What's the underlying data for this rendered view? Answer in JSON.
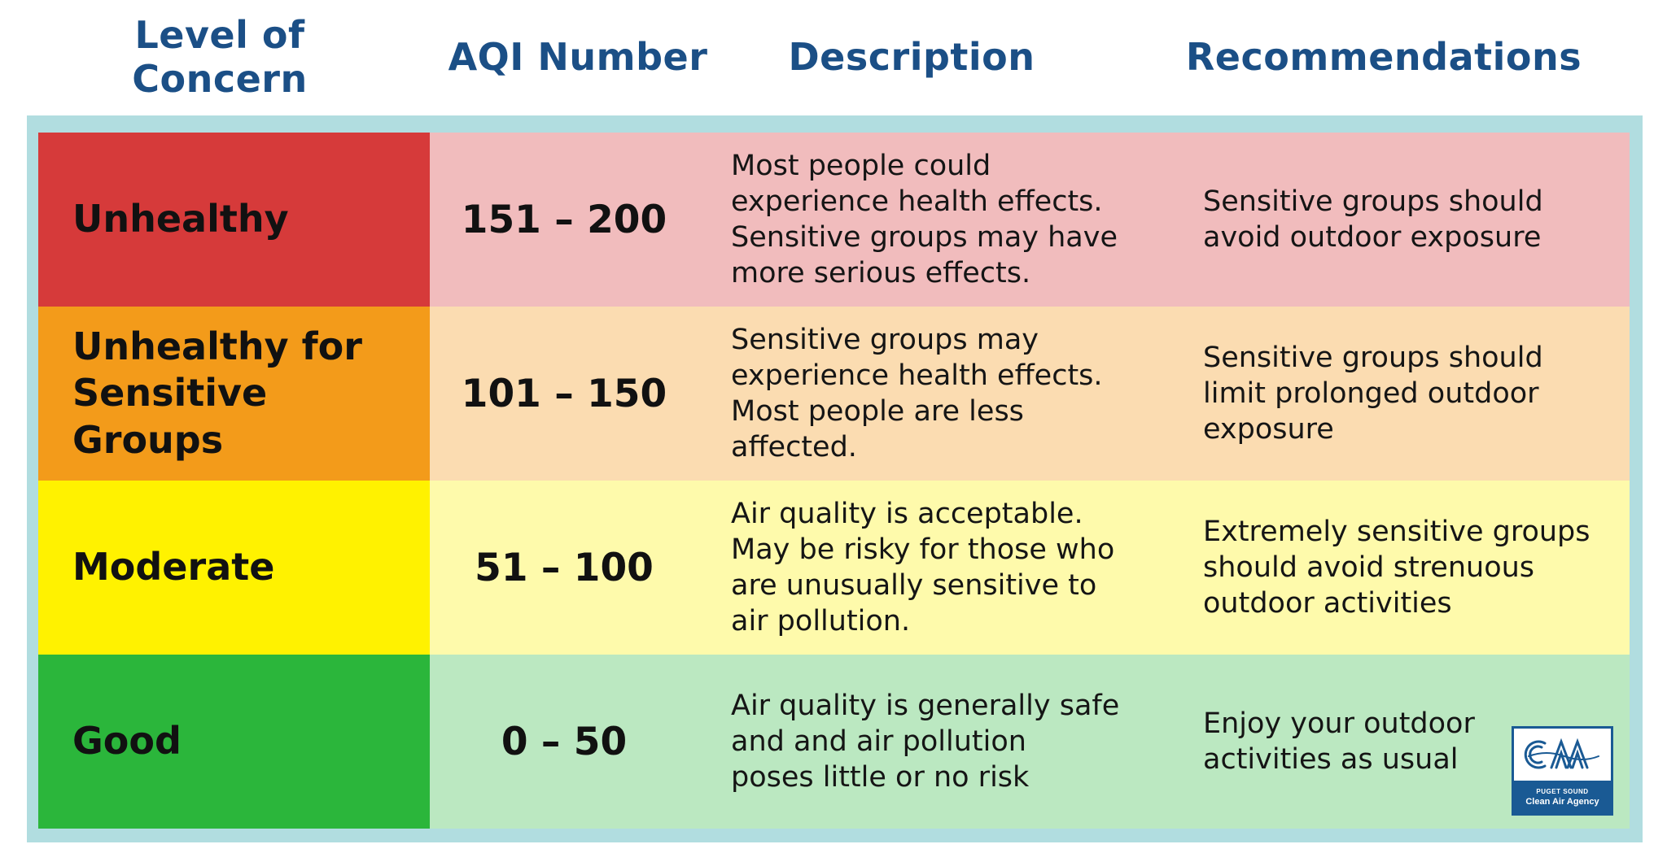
{
  "headers": {
    "level": "Level of\nConcern",
    "aqi": "AQI Number",
    "description": "Description",
    "recommendations": "Recommendations"
  },
  "rows": [
    {
      "level": "Unhealthy",
      "aqi": "151 – 200",
      "description": "Most people could\nexperience health effects.\nSensitive groups may have\nmore serious effects.",
      "recommendation": "Sensitive groups should\navoid outdoor exposure",
      "level_color": "#d63a3a",
      "row_color": "#f1bcbd"
    },
    {
      "level": "Unhealthy for\nSensitive Groups",
      "aqi": "101 – 150",
      "description": "Sensitive groups may\nexperience health effects.\nMost people are less\naffected.",
      "recommendation": "Sensitive groups should\nlimit prolonged outdoor\nexposure",
      "level_color": "#f39b1a",
      "row_color": "#fbdcb1"
    },
    {
      "level": "Moderate",
      "aqi": "51 – 100",
      "description": "Air quality is acceptable.\nMay be risky for those who\nare unusually sensitive to\nair pollution.",
      "recommendation": "Extremely sensitive groups\nshould avoid strenuous\noutdoor activities",
      "level_color": "#fff200",
      "row_color": "#fefaab"
    },
    {
      "level": "Good",
      "aqi": "0 – 50",
      "description": "Air quality is generally safe\nand and air pollution\nposes little or no risk",
      "recommendation": "Enjoy your outdoor\nactivities as usual",
      "level_color": "#2bb63b",
      "row_color": "#bbe8c1"
    }
  ],
  "logo": {
    "mark": "CAA",
    "line1": "PUGET SOUND",
    "line2": "Clean Air Agency"
  },
  "colors": {
    "header_text": "#1b4f86",
    "frame": "#b1dde0",
    "logo": "#1a5a94"
  }
}
